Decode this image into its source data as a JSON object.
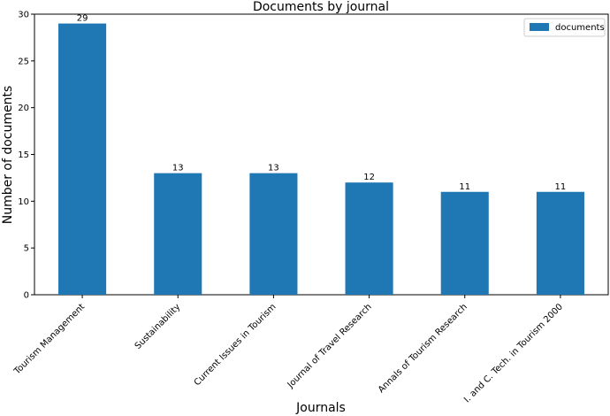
{
  "chart_data": {
    "type": "bar",
    "title": "Documents by journal",
    "xlabel": "Journals",
    "ylabel": "Number of documents",
    "categories": [
      "Tourism Management",
      "Sustainability",
      "Current Issues in Tourism",
      "Journal of Travel Research",
      "Annals of Tourism Research",
      "I. and C. Tech. in Tourism 2000"
    ],
    "series": [
      {
        "name": "documents",
        "values": [
          29,
          13,
          13,
          12,
          11,
          11
        ]
      }
    ],
    "data_labels": [
      "29",
      "13",
      "13",
      "12",
      "11",
      "11"
    ],
    "ylim": [
      0,
      30
    ],
    "yticks": [
      "0",
      "5",
      "10",
      "15",
      "20",
      "25",
      "30"
    ],
    "grid": false,
    "legend_position": "top-right",
    "bar_color": "#1f77b4"
  }
}
